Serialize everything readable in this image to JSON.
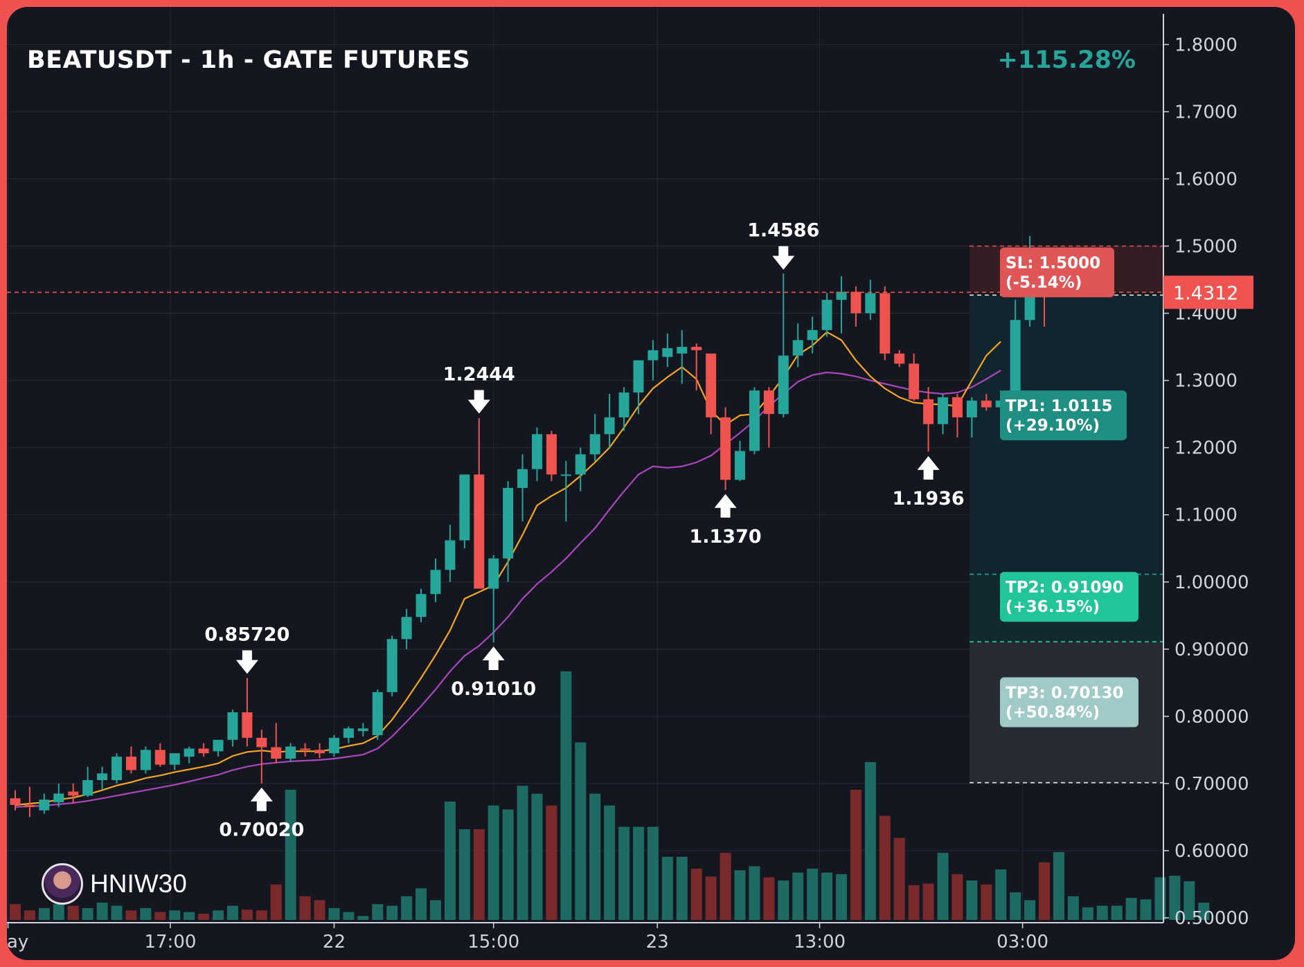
{
  "header": {
    "title": "BEATUSDT - 1h - GATE FUTURES",
    "performance": "+115.28%"
  },
  "brand": {
    "name": "HNIW30",
    "icon": "avatar-icon"
  },
  "colors": {
    "background": "#141720",
    "frame": "#ef5050",
    "up": "#26a69a",
    "down": "#ef5350",
    "ema_fast": "#f5a623",
    "ema_slow": "#ab47bc",
    "grid": "#262a35",
    "axis_text": "#d1d4dc"
  },
  "chart_data": {
    "type": "candlestick",
    "y_axis": {
      "ticks": [
        {
          "value": 1.8,
          "label": "1.8000"
        },
        {
          "value": 1.7,
          "label": "1.7000"
        },
        {
          "value": 1.6,
          "label": "1.6000"
        },
        {
          "value": 1.5,
          "label": "1.5000"
        },
        {
          "value": 1.4,
          "label": "1.4000"
        },
        {
          "value": 1.3,
          "label": "1.3000"
        },
        {
          "value": 1.2,
          "label": "1.2000"
        },
        {
          "value": 1.1,
          "label": "1.1000"
        },
        {
          "value": 1.0,
          "label": "1.00000"
        },
        {
          "value": 0.9,
          "label": "0.90000"
        },
        {
          "value": 0.8,
          "label": "0.80000"
        },
        {
          "value": 0.7,
          "label": "0.70000"
        },
        {
          "value": 0.6,
          "label": "0.60000"
        },
        {
          "value": 0.5,
          "label": "0.50000"
        }
      ],
      "ylim": [
        0.5,
        1.84
      ],
      "position": "right"
    },
    "x_axis": {
      "ticks": [
        {
          "index": -0.5,
          "label": "ay"
        },
        {
          "index": 10.7,
          "label": "17:00"
        },
        {
          "index": 22,
          "label": "22"
        },
        {
          "index": 33,
          "label": "15:00"
        },
        {
          "index": 44.3,
          "label": "23"
        },
        {
          "index": 55.5,
          "label": "13:00"
        },
        {
          "index": 69.5,
          "label": "03:00"
        }
      ]
    },
    "current_price": {
      "value": 1.4312,
      "label": "1.4312"
    },
    "candles": [
      {
        "o": 0.678,
        "h": 0.69,
        "l": 0.66,
        "c": 0.668
      },
      {
        "o": 0.668,
        "h": 0.695,
        "l": 0.65,
        "c": 0.665
      },
      {
        "o": 0.66,
        "h": 0.685,
        "l": 0.655,
        "c": 0.676
      },
      {
        "o": 0.672,
        "h": 0.7,
        "l": 0.665,
        "c": 0.685
      },
      {
        "o": 0.688,
        "h": 0.7,
        "l": 0.67,
        "c": 0.682
      },
      {
        "o": 0.682,
        "h": 0.725,
        "l": 0.68,
        "c": 0.705
      },
      {
        "o": 0.705,
        "h": 0.725,
        "l": 0.69,
        "c": 0.715
      },
      {
        "o": 0.705,
        "h": 0.745,
        "l": 0.7,
        "c": 0.74
      },
      {
        "o": 0.74,
        "h": 0.755,
        "l": 0.715,
        "c": 0.72
      },
      {
        "o": 0.72,
        "h": 0.755,
        "l": 0.715,
        "c": 0.75
      },
      {
        "o": 0.75,
        "h": 0.76,
        "l": 0.725,
        "c": 0.728
      },
      {
        "o": 0.728,
        "h": 0.745,
        "l": 0.72,
        "c": 0.745
      },
      {
        "o": 0.74,
        "h": 0.755,
        "l": 0.73,
        "c": 0.752
      },
      {
        "o": 0.752,
        "h": 0.76,
        "l": 0.74,
        "c": 0.745
      },
      {
        "o": 0.748,
        "h": 0.765,
        "l": 0.74,
        "c": 0.765
      },
      {
        "o": 0.765,
        "h": 0.81,
        "l": 0.755,
        "c": 0.806
      },
      {
        "o": 0.806,
        "h": 0.857,
        "l": 0.755,
        "c": 0.768
      },
      {
        "o": 0.768,
        "h": 0.78,
        "l": 0.7,
        "c": 0.754
      },
      {
        "o": 0.754,
        "h": 0.79,
        "l": 0.73,
        "c": 0.737
      },
      {
        "o": 0.737,
        "h": 0.76,
        "l": 0.732,
        "c": 0.755
      },
      {
        "o": 0.752,
        "h": 0.76,
        "l": 0.74,
        "c": 0.75
      },
      {
        "o": 0.75,
        "h": 0.76,
        "l": 0.738,
        "c": 0.745
      },
      {
        "o": 0.745,
        "h": 0.772,
        "l": 0.74,
        "c": 0.768
      },
      {
        "o": 0.768,
        "h": 0.785,
        "l": 0.76,
        "c": 0.782
      },
      {
        "o": 0.778,
        "h": 0.79,
        "l": 0.77,
        "c": 0.782
      },
      {
        "o": 0.772,
        "h": 0.84,
        "l": 0.765,
        "c": 0.836
      },
      {
        "o": 0.836,
        "h": 0.92,
        "l": 0.83,
        "c": 0.915
      },
      {
        "o": 0.915,
        "h": 0.96,
        "l": 0.9,
        "c": 0.948
      },
      {
        "o": 0.948,
        "h": 0.99,
        "l": 0.94,
        "c": 0.982
      },
      {
        "o": 0.982,
        "h": 1.035,
        "l": 0.97,
        "c": 1.018
      },
      {
        "o": 1.018,
        "h": 1.085,
        "l": 1.0,
        "c": 1.062
      },
      {
        "o": 1.062,
        "h": 1.15,
        "l": 1.05,
        "c": 1.16
      },
      {
        "o": 1.16,
        "h": 1.244,
        "l": 0.99,
        "c": 0.99
      },
      {
        "o": 0.99,
        "h": 1.04,
        "l": 0.91,
        "c": 1.035
      },
      {
        "o": 1.035,
        "h": 1.15,
        "l": 1.0,
        "c": 1.14
      },
      {
        "o": 1.14,
        "h": 1.19,
        "l": 1.09,
        "c": 1.168
      },
      {
        "o": 1.168,
        "h": 1.23,
        "l": 1.15,
        "c": 1.22
      },
      {
        "o": 1.22,
        "h": 1.225,
        "l": 1.15,
        "c": 1.16
      },
      {
        "o": 1.16,
        "h": 1.18,
        "l": 1.09,
        "c": 1.16
      },
      {
        "o": 1.16,
        "h": 1.2,
        "l": 1.135,
        "c": 1.19
      },
      {
        "o": 1.19,
        "h": 1.25,
        "l": 1.18,
        "c": 1.22
      },
      {
        "o": 1.22,
        "h": 1.28,
        "l": 1.2,
        "c": 1.245
      },
      {
        "o": 1.245,
        "h": 1.29,
        "l": 1.225,
        "c": 1.282
      },
      {
        "o": 1.282,
        "h": 1.32,
        "l": 1.25,
        "c": 1.33
      },
      {
        "o": 1.33,
        "h": 1.36,
        "l": 1.3,
        "c": 1.345
      },
      {
        "o": 1.335,
        "h": 1.37,
        "l": 1.32,
        "c": 1.348
      },
      {
        "o": 1.34,
        "h": 1.375,
        "l": 1.295,
        "c": 1.35
      },
      {
        "o": 1.35,
        "h": 1.355,
        "l": 1.285,
        "c": 1.345
      },
      {
        "o": 1.34,
        "h": 1.34,
        "l": 1.22,
        "c": 1.245
      },
      {
        "o": 1.245,
        "h": 1.26,
        "l": 1.137,
        "c": 1.152
      },
      {
        "o": 1.152,
        "h": 1.21,
        "l": 1.15,
        "c": 1.195
      },
      {
        "o": 1.195,
        "h": 1.29,
        "l": 1.19,
        "c": 1.285
      },
      {
        "o": 1.285,
        "h": 1.29,
        "l": 1.2,
        "c": 1.25
      },
      {
        "o": 1.25,
        "h": 1.459,
        "l": 1.245,
        "c": 1.337
      },
      {
        "o": 1.337,
        "h": 1.385,
        "l": 1.32,
        "c": 1.36
      },
      {
        "o": 1.36,
        "h": 1.395,
        "l": 1.34,
        "c": 1.375
      },
      {
        "o": 1.375,
        "h": 1.43,
        "l": 1.365,
        "c": 1.42
      },
      {
        "o": 1.42,
        "h": 1.455,
        "l": 1.37,
        "c": 1.432
      },
      {
        "o": 1.432,
        "h": 1.44,
        "l": 1.38,
        "c": 1.4
      },
      {
        "o": 1.4,
        "h": 1.45,
        "l": 1.39,
        "c": 1.43
      },
      {
        "o": 1.43,
        "h": 1.44,
        "l": 1.33,
        "c": 1.34
      },
      {
        "o": 1.34,
        "h": 1.345,
        "l": 1.32,
        "c": 1.325
      },
      {
        "o": 1.325,
        "h": 1.34,
        "l": 1.27,
        "c": 1.272
      },
      {
        "o": 1.272,
        "h": 1.29,
        "l": 1.194,
        "c": 1.235
      },
      {
        "o": 1.235,
        "h": 1.28,
        "l": 1.22,
        "c": 1.275
      },
      {
        "o": 1.275,
        "h": 1.28,
        "l": 1.215,
        "c": 1.245
      },
      {
        "o": 1.245,
        "h": 1.275,
        "l": 1.215,
        "c": 1.27
      },
      {
        "o": 1.27,
        "h": 1.28,
        "l": 1.255,
        "c": 1.26
      },
      {
        "o": 1.26,
        "h": 1.285,
        "l": 1.235,
        "c": 1.27
      },
      {
        "o": 1.275,
        "h": 1.42,
        "l": 1.27,
        "c": 1.39
      },
      {
        "o": 1.39,
        "h": 1.515,
        "l": 1.38,
        "c": 1.442
      },
      {
        "o": 1.442,
        "h": 1.445,
        "l": 1.38,
        "c": 1.431
      }
    ],
    "volumes": [
      0.02,
      0.012,
      0.015,
      0.02,
      0.018,
      0.015,
      0.022,
      0.018,
      0.012,
      0.015,
      0.01,
      0.012,
      0.01,
      0.008,
      0.012,
      0.018,
      0.013,
      0.012,
      0.045,
      0.165,
      0.03,
      0.025,
      0.015,
      0.01,
      0.005,
      0.02,
      0.018,
      0.03,
      0.04,
      0.025,
      0.15,
      0.115,
      0.115,
      0.145,
      0.14,
      0.17,
      0.16,
      0.145,
      0.315,
      0.225,
      0.16,
      0.145,
      0.118,
      0.118,
      0.118,
      0.08,
      0.08,
      0.065,
      0.055,
      0.085,
      0.063,
      0.068,
      0.054,
      0.05,
      0.06,
      0.065,
      0.06,
      0.058,
      0.165,
      0.2,
      0.132,
      0.104,
      0.044,
      0.046,
      0.085,
      0.058,
      0.05,
      0.045,
      0.064,
      0.035,
      0.025,
      0.073,
      0.086,
      0.03,
      0.016,
      0.018,
      0.018,
      0.028,
      0.026,
      0.054,
      0.056,
      0.049,
      0.022
    ],
    "ema_fast": [
      0.668,
      0.67,
      0.672,
      0.676,
      0.679,
      0.684,
      0.69,
      0.697,
      0.702,
      0.708,
      0.712,
      0.717,
      0.721,
      0.725,
      0.73,
      0.741,
      0.747,
      0.749,
      0.747,
      0.748,
      0.748,
      0.748,
      0.751,
      0.756,
      0.76,
      0.771,
      0.795,
      0.825,
      0.857,
      0.891,
      0.928,
      0.975,
      0.985,
      0.995,
      1.03,
      1.07,
      1.114,
      1.128,
      1.14,
      1.158,
      1.178,
      1.2,
      1.23,
      1.262,
      1.288,
      1.305,
      1.32,
      1.302,
      1.255,
      1.234,
      1.248,
      1.25,
      1.276,
      1.305,
      1.338,
      1.352,
      1.372,
      1.36,
      1.33,
      1.306,
      1.288,
      1.275,
      1.267,
      1.265,
      1.264,
      1.262,
      1.3,
      1.337,
      1.358
    ],
    "ema_slow": [
      0.665,
      0.666,
      0.667,
      0.669,
      0.671,
      0.674,
      0.678,
      0.682,
      0.686,
      0.69,
      0.694,
      0.698,
      0.703,
      0.708,
      0.713,
      0.72,
      0.725,
      0.729,
      0.731,
      0.733,
      0.734,
      0.735,
      0.737,
      0.74,
      0.743,
      0.752,
      0.77,
      0.792,
      0.815,
      0.84,
      0.867,
      0.89,
      0.905,
      0.925,
      0.948,
      0.975,
      0.997,
      1.015,
      1.035,
      1.058,
      1.08,
      1.108,
      1.135,
      1.16,
      1.172,
      1.17,
      1.172,
      1.178,
      1.188,
      1.205,
      1.222,
      1.24,
      1.262,
      1.28,
      1.298,
      1.308,
      1.312,
      1.31,
      1.306,
      1.3,
      1.295,
      1.29,
      1.285,
      1.282,
      1.28,
      1.282,
      1.29,
      1.302,
      1.315
    ],
    "annotations": [
      {
        "index": 16,
        "value": 0.857,
        "label": "0.85720",
        "position": "above"
      },
      {
        "index": 17,
        "value": 0.7002,
        "label": "0.70020",
        "position": "below"
      },
      {
        "index": 32,
        "value": 1.2444,
        "label": "1.2444",
        "position": "above"
      },
      {
        "index": 33,
        "value": 0.9101,
        "label": "0.91010",
        "position": "below"
      },
      {
        "index": 49,
        "value": 1.137,
        "label": "1.1370",
        "position": "below"
      },
      {
        "index": 53,
        "value": 1.4586,
        "label": "1.4586",
        "position": "above"
      },
      {
        "index": 63,
        "value": 1.1936,
        "label": "1.1936",
        "position": "below"
      }
    ],
    "levels": [
      {
        "name": "sl",
        "value": 1.5,
        "label_line1": "SL: 1.5000",
        "label_line2": "(-5.14%)",
        "color": "#e05555"
      },
      {
        "name": "tp1",
        "value": 1.0115,
        "label_line1": "TP1: 1.0115",
        "label_line2": "(+29.10%)",
        "color": "#1f8f83"
      },
      {
        "name": "tp2",
        "value": 0.9109,
        "label_line1": "TP2: 0.91090",
        "label_line2": "(+36.15%)",
        "color": "#22c49a"
      },
      {
        "name": "tp3",
        "value": 0.7013,
        "label_line1": "TP3: 0.70130",
        "label_line2": "(+50.84%)",
        "color": "#9fcac8"
      }
    ]
  }
}
